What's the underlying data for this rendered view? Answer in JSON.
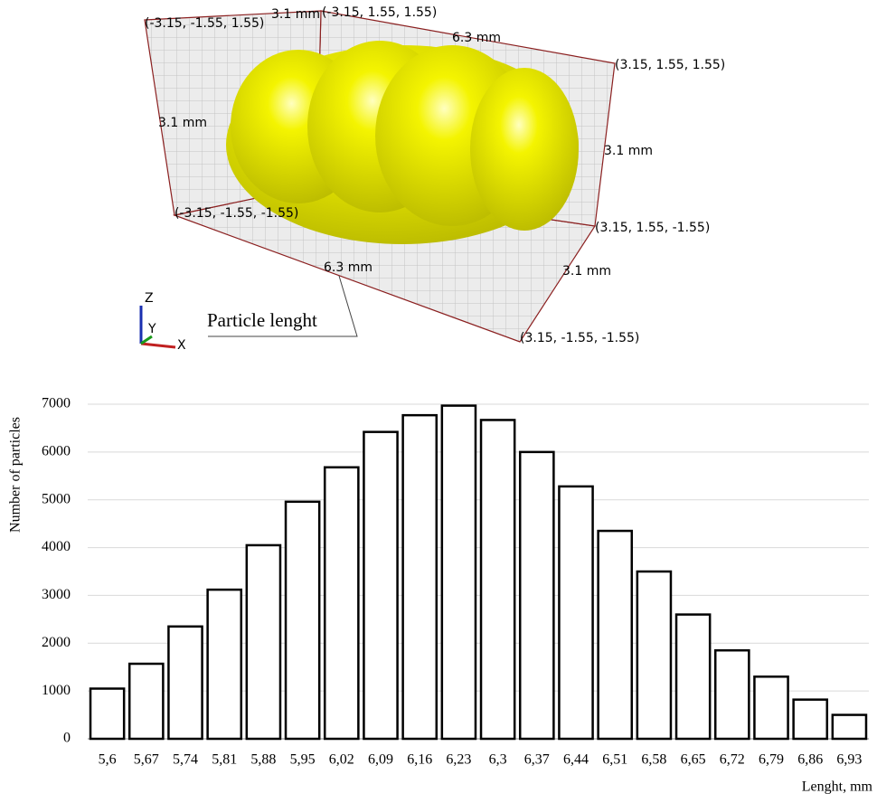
{
  "view": {
    "corners": [
      "(-3.15, -1.55, 1.55)",
      "(-3.15, 1.55, 1.55)",
      "(3.15, 1.55, 1.55)",
      "(3.15, 1.55, -1.55)",
      "(-3.15, -1.55, -1.55)",
      "(3.15, -1.55, -1.55)"
    ],
    "dimensions": [
      "3.1 mm",
      "6.3 mm",
      "3.1 mm",
      "3.1 mm",
      "6.3 mm",
      "3.1 mm"
    ],
    "triad": [
      "Z",
      "Y",
      "X"
    ],
    "annotation": "Particle lenght"
  },
  "chart_data": {
    "type": "bar",
    "categories": [
      "5,6",
      "5,67",
      "5,74",
      "5,81",
      "5,88",
      "5,95",
      "6,02",
      "6,09",
      "6,16",
      "6,23",
      "6,3",
      "6,37",
      "6,44",
      "6,51",
      "6,58",
      "6,65",
      "6,72",
      "6,79",
      "6,86",
      "6,93"
    ],
    "values": [
      1050,
      1570,
      2350,
      3120,
      4050,
      4960,
      5680,
      6420,
      6770,
      6970,
      6670,
      6000,
      5280,
      4350,
      3500,
      2600,
      1850,
      1300,
      820,
      500
    ],
    "color": "#ffffff",
    "x_label": "Lenght, mm",
    "y_label": "Number of particles",
    "ylim": [
      0,
      7000
    ],
    "yticks": [
      0,
      1000,
      2000,
      3000,
      4000,
      5000,
      6000,
      7000
    ],
    "grid": true
  }
}
